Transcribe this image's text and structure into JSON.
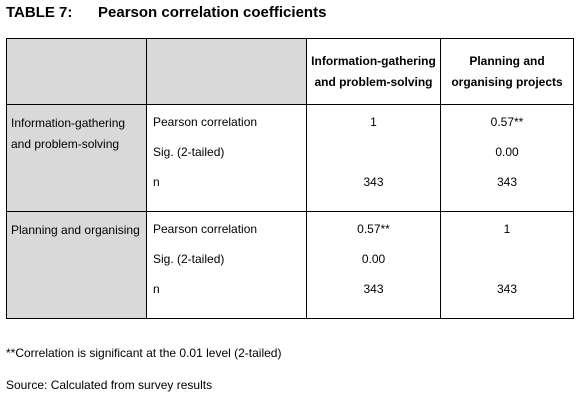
{
  "caption": {
    "label": "TABLE 7:",
    "title": "Pearson correlation coefficients"
  },
  "columns": [
    {
      "line1": "Information-gathering",
      "line2": "and problem-solving"
    },
    {
      "line1": "Planning and",
      "line2": "organising projects"
    }
  ],
  "rows": [
    {
      "label_line1": "Information-gathering",
      "label_line2": "and problem-solving",
      "stats": [
        "Pearson correlation",
        "Sig. (2-tailed)",
        "n"
      ],
      "col1": [
        "1",
        "",
        "343"
      ],
      "col2": [
        "0.57**",
        "0.00",
        "343"
      ]
    },
    {
      "label_line1": "Planning and organising",
      "label_line2": "",
      "stats": [
        "Pearson correlation",
        "Sig. (2-tailed)",
        "n"
      ],
      "col1": [
        "0.57**",
        "0.00",
        "343"
      ],
      "col2": [
        "1",
        "",
        "343"
      ]
    }
  ],
  "notes": {
    "significance": "**Correlation is significant at the 0.01 level (2-tailed)",
    "source": "Source: Calculated from survey results"
  }
}
